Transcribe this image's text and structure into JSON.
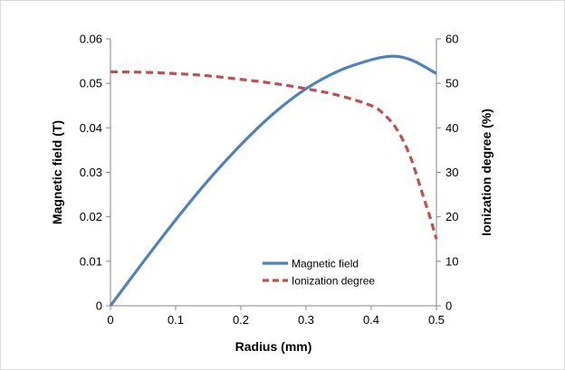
{
  "chart_data": {
    "type": "line",
    "title": "",
    "xlabel": "Radius (mm)",
    "ylabel": "Magnetic field (T)",
    "y2label": "Ionization degree (%)",
    "xlim": [
      0,
      0.5
    ],
    "ylim": [
      0,
      0.06
    ],
    "y2lim": [
      0,
      60
    ],
    "x_ticks": [
      "0",
      "0.1",
      "0.2",
      "0.3",
      "0.4",
      "0.5"
    ],
    "y_ticks": [
      "0",
      "0.01",
      "0.02",
      "0.03",
      "0.04",
      "0.05",
      "0.06"
    ],
    "y2_ticks": [
      "0",
      "10",
      "20",
      "30",
      "40",
      "50",
      "60"
    ],
    "grid": false,
    "legend_position": "bottom-right",
    "series": [
      {
        "name": "Magnetic field",
        "axis": "left",
        "color": "#4f81bd",
        "style": "solid",
        "x": [
          0,
          0.05,
          0.1,
          0.15,
          0.2,
          0.25,
          0.3,
          0.35,
          0.4,
          0.43,
          0.45,
          0.47,
          0.5
        ],
        "y": [
          0,
          0.0098,
          0.0193,
          0.0282,
          0.0362,
          0.0432,
          0.0488,
          0.0528,
          0.0553,
          0.0561,
          0.0558,
          0.0547,
          0.0522
        ]
      },
      {
        "name": "Ionization degree",
        "axis": "right",
        "color": "#c0504d",
        "style": "dashed",
        "x": [
          0,
          0.05,
          0.1,
          0.15,
          0.2,
          0.25,
          0.3,
          0.35,
          0.4,
          0.42,
          0.44,
          0.46,
          0.48,
          0.49,
          0.5
        ],
        "y": [
          52.6,
          52.5,
          52.2,
          51.7,
          50.9,
          50.0,
          48.8,
          47.3,
          45.0,
          43.0,
          39.5,
          33.5,
          24.5,
          20.0,
          15.0
        ]
      }
    ]
  }
}
